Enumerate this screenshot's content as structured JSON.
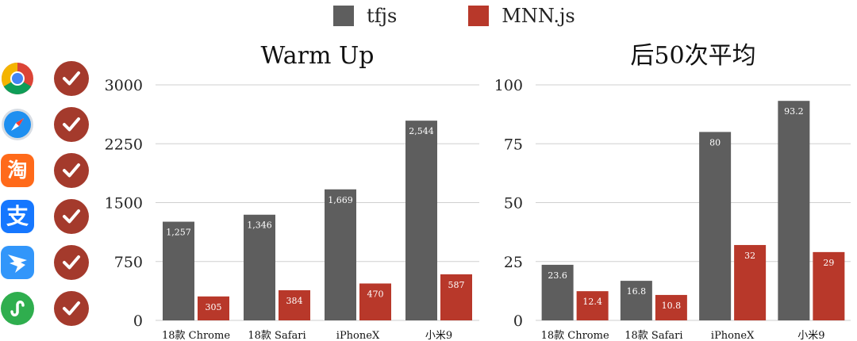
{
  "legend": [
    {
      "name": "tfjs",
      "color": "#5e5e5e"
    },
    {
      "name": "MNN.js",
      "color": "#b8382a"
    }
  ],
  "platform_icons": [
    {
      "name": "chrome-icon"
    },
    {
      "name": "safari-icon"
    },
    {
      "name": "taobao-icon",
      "glyph": "淘",
      "color": "#ff6a1a"
    },
    {
      "name": "alipay-icon",
      "glyph": "支",
      "color": "#1677ff"
    },
    {
      "name": "dingtalk-icon",
      "color": "#3296fa"
    },
    {
      "name": "mini-program-icon",
      "color": "#2fae4e"
    }
  ],
  "check_icon": "checkmark-icon",
  "chart_data": [
    {
      "type": "bar",
      "title": "Warm Up",
      "categories": [
        "18款 Chrome",
        "18款 Safari",
        "iPhoneX",
        "小米9"
      ],
      "series": [
        {
          "name": "tfjs",
          "values": [
            1257,
            1346,
            1669,
            2544
          ],
          "labels": [
            "1,257",
            "1,346",
            "1,669",
            "2,544"
          ],
          "color": "#5e5e5e"
        },
        {
          "name": "MNN.js",
          "values": [
            305,
            384,
            470,
            587
          ],
          "labels": [
            "305",
            "384",
            "470",
            "587"
          ],
          "color": "#b8382a"
        }
      ],
      "yticks": [
        "0",
        "750",
        "1500",
        "2250",
        "3000"
      ],
      "ylim": [
        0,
        3000
      ],
      "grid": true,
      "legend": "top"
    },
    {
      "type": "bar",
      "title": "后50次平均",
      "categories": [
        "18款 Chrome",
        "18款 Safari",
        "iPhoneX",
        "小米9"
      ],
      "series": [
        {
          "name": "tfjs",
          "values": [
            23.6,
            16.8,
            80,
            93.2
          ],
          "labels": [
            "23.6",
            "16.8",
            "80",
            "93.2"
          ],
          "color": "#5e5e5e"
        },
        {
          "name": "MNN.js",
          "values": [
            12.4,
            10.8,
            32,
            29
          ],
          "labels": [
            "12.4",
            "10.8",
            "32",
            "29"
          ],
          "color": "#b8382a"
        }
      ],
      "yticks": [
        "0",
        "25",
        "50",
        "75",
        "100"
      ],
      "ylim": [
        0,
        100
      ],
      "grid": true,
      "legend": "top"
    }
  ]
}
